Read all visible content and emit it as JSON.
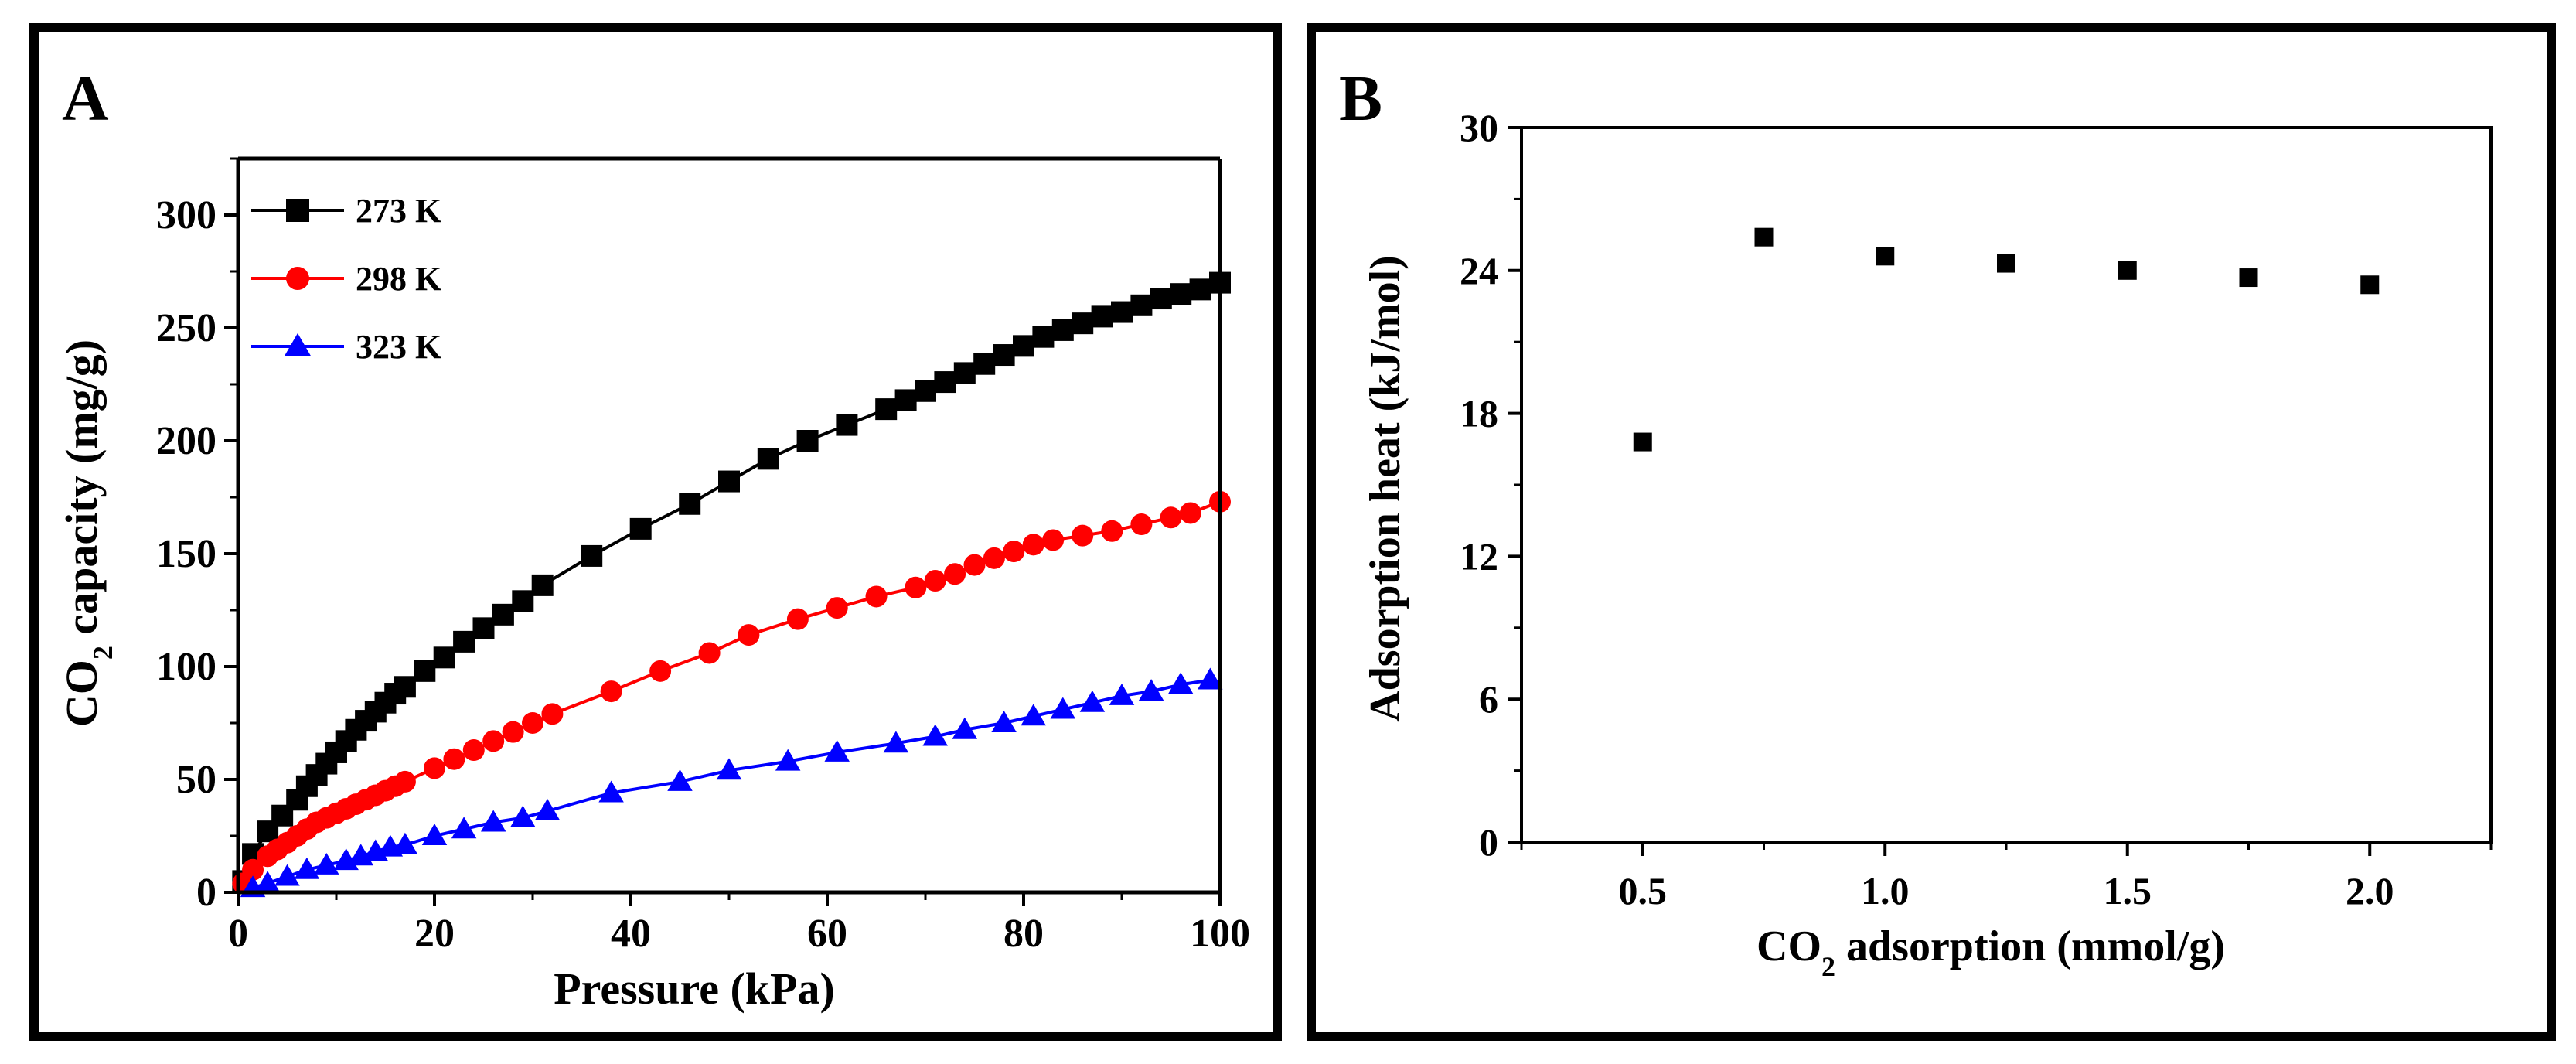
{
  "chart_data": [
    {
      "panel_label": "A",
      "type": "line",
      "xlabel": "Pressure (kPa)",
      "ylabel_parts": [
        "CO",
        "2",
        " capacity (mg/g)"
      ],
      "xlim": [
        0,
        100
      ],
      "ylim": [
        0,
        325
      ],
      "xticks": [
        0,
        20,
        40,
        60,
        80,
        100
      ],
      "yticks": [
        0,
        50,
        100,
        150,
        200,
        250,
        300
      ],
      "legend_position": "top-left",
      "series": [
        {
          "name": "273 K",
          "color": "#000000",
          "marker": "square",
          "x": [
            0.5,
            1.5,
            3,
            4.5,
            6,
            7,
            8,
            9,
            10,
            11,
            12,
            13,
            14,
            15,
            16,
            17,
            19,
            21,
            23,
            25,
            27,
            29,
            31,
            36,
            41,
            46,
            50,
            54,
            58,
            62,
            66,
            68,
            70,
            72,
            74,
            76,
            78,
            80,
            82,
            84,
            86,
            88,
            90,
            92,
            94,
            96,
            98,
            100
          ],
          "y": [
            5,
            17,
            27,
            34,
            41,
            47,
            52,
            57,
            62,
            67,
            72,
            76,
            80,
            84,
            88,
            91,
            98,
            104,
            111,
            117,
            123,
            129,
            136,
            149,
            161,
            172,
            182,
            192,
            200,
            207,
            214,
            218,
            222,
            226,
            230,
            234,
            238,
            242,
            246,
            249,
            252,
            255,
            257,
            260,
            263,
            265,
            267,
            270
          ]
        },
        {
          "name": "298 K",
          "color": "#ff0000",
          "marker": "circle",
          "x": [
            0.5,
            1.5,
            3,
            4,
            5,
            6,
            7,
            8,
            9,
            10,
            11,
            12,
            13,
            14,
            15,
            16,
            17,
            20,
            22,
            24,
            26,
            28,
            30,
            32,
            38,
            43,
            48,
            52,
            57,
            61,
            65,
            69,
            71,
            73,
            75,
            77,
            79,
            81,
            83,
            86,
            89,
            92,
            95,
            97,
            100
          ],
          "y": [
            4,
            10,
            16,
            19,
            22,
            25,
            28,
            31,
            33,
            35,
            37,
            39,
            41,
            43,
            45,
            47,
            49,
            55,
            59,
            63,
            67,
            71,
            75,
            79,
            89,
            98,
            106,
            114,
            121,
            126,
            131,
            135,
            138,
            141,
            145,
            148,
            151,
            154,
            156,
            158,
            160,
            163,
            166,
            168,
            173
          ]
        },
        {
          "name": "323 K",
          "color": "#0000ff",
          "marker": "triangle",
          "x": [
            1.5,
            3,
            5,
            7,
            9,
            11,
            12.5,
            14,
            15.5,
            17,
            20,
            23,
            26,
            29,
            31.5,
            38,
            45,
            50,
            56,
            61,
            67,
            71,
            74,
            78,
            81,
            84,
            87,
            90,
            93,
            96,
            99
          ],
          "y": [
            2,
            4,
            7,
            10,
            12,
            14,
            16,
            18,
            20,
            21,
            25,
            28,
            31,
            33,
            36,
            44,
            49,
            54,
            58,
            62,
            66,
            69,
            72,
            75,
            78,
            81,
            84,
            87,
            89,
            92,
            94
          ]
        }
      ]
    },
    {
      "panel_label": "B",
      "type": "scatter",
      "ylabel": "Adsorption heat  (kJ/mol)",
      "xlabel_parts": [
        "CO",
        "2",
        " adsorption (mmol/g)"
      ],
      "xlim": [
        0.25,
        2.25
      ],
      "ylim": [
        0,
        30
      ],
      "xticks": [
        "0.5",
        "1.0",
        "1.5",
        "2.0"
      ],
      "yticks": [
        "0",
        "6",
        "12",
        "18",
        "24",
        "30"
      ],
      "series": [
        {
          "name": "Adsorption heat",
          "color": "#000000",
          "marker": "square",
          "x": [
            0.5,
            0.75,
            1.0,
            1.25,
            1.5,
            1.75,
            2.0
          ],
          "y": [
            16.8,
            25.4,
            24.6,
            24.3,
            24.0,
            23.7,
            23.4
          ]
        }
      ]
    }
  ]
}
